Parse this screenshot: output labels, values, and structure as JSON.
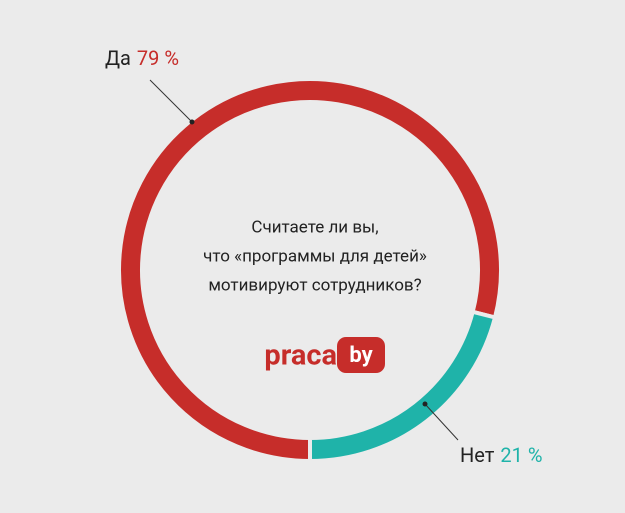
{
  "chart_data": {
    "type": "pie",
    "donut": true,
    "title": [
      "Считаете ли вы,",
      "что «программы для детей»",
      "мотивируют сотрудников?"
    ],
    "categories": [
      "Да",
      "Нет"
    ],
    "values": [
      79,
      21
    ],
    "value_labels": [
      "79 %",
      "21 %"
    ],
    "colors": [
      "#c62d2a",
      "#1fb3a9"
    ]
  },
  "logo": {
    "text": "praca",
    "badge": "by"
  }
}
